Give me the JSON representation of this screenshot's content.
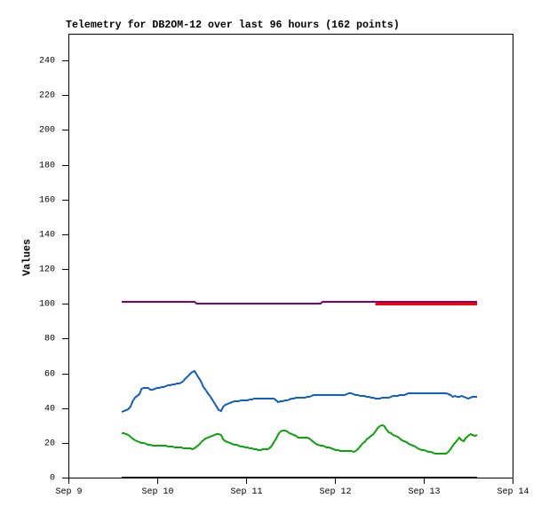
{
  "page": {
    "background": "#ffffff"
  },
  "chart_data": {
    "type": "line",
    "title": "Telemetry for DB2OM-12 over last 96 hours (162 points)",
    "xlabel": "",
    "ylabel": "Values",
    "points_count": 162,
    "x_axis": {
      "unit": "days",
      "range": [
        0,
        5
      ],
      "tick_days": [
        0,
        1,
        2,
        3,
        4,
        5
      ],
      "tick_labels": [
        "Sep 9",
        "Sep 10",
        "Sep 11",
        "Sep 12",
        "Sep 13",
        "Sep 14"
      ],
      "grid": false
    },
    "y_axis": {
      "range": [
        0,
        255.32
      ],
      "tick_min": 0,
      "tick_max": 240,
      "tick_step": 20,
      "tick_labels": [
        "0",
        "20",
        "40",
        "60",
        "80",
        "100",
        "120",
        "140",
        "160",
        "180",
        "200",
        "220",
        "240"
      ],
      "grid": false
    },
    "window_days": [
      0.6,
      4.6
    ],
    "sample_days": [
      0.6,
      0.6248,
      0.6497,
      0.6745,
      0.6994,
      0.7242,
      0.7491,
      0.7739,
      0.7988,
      0.8236,
      0.8484,
      0.8733,
      0.8981,
      0.923,
      0.9478,
      0.9727,
      0.9975,
      1.0224,
      1.0472,
      1.072,
      1.0969,
      1.1217,
      1.1466,
      1.1714,
      1.1963,
      1.2211,
      1.246,
      1.2708,
      1.2957,
      1.3205,
      1.3453,
      1.3702,
      1.395,
      1.4199,
      1.4447,
      1.4696,
      1.4944,
      1.5193,
      1.5441,
      1.5689,
      1.5938,
      1.6186,
      1.6435,
      1.6683,
      1.6932,
      1.718,
      1.7429,
      1.7677,
      1.7925,
      1.8174,
      1.8422,
      1.8671,
      1.8919,
      1.9168,
      1.9416,
      1.9665,
      1.9913,
      2.0161,
      2.041,
      2.0658,
      2.0907,
      2.1155,
      2.1404,
      2.1652,
      2.1901,
      2.2149,
      2.2398,
      2.2646,
      2.2894,
      2.3143,
      2.3391,
      2.364,
      2.3888,
      2.4137,
      2.4385,
      2.4634,
      2.4882,
      2.513,
      2.5379,
      2.5627,
      2.5876,
      2.6124,
      2.6373,
      2.6621,
      2.687,
      2.7118,
      2.7366,
      2.7615,
      2.7863,
      2.8112,
      2.836,
      2.8609,
      2.8857,
      2.9106,
      2.9354,
      2.9602,
      2.9851,
      3.0099,
      3.0348,
      3.0596,
      3.0845,
      3.1093,
      3.1342,
      3.159,
      3.1839,
      3.2087,
      3.2335,
      3.2584,
      3.2832,
      3.3081,
      3.3329,
      3.3578,
      3.3826,
      3.4075,
      3.4323,
      3.4571,
      3.482,
      3.5068,
      3.5317,
      3.5565,
      3.5814,
      3.6062,
      3.6311,
      3.6559,
      3.6807,
      3.7056,
      3.7304,
      3.7553,
      3.7801,
      3.805,
      3.8298,
      3.8547,
      3.8795,
      3.9043,
      3.9292,
      3.954,
      3.9789,
      4.0037,
      4.0286,
      4.0534,
      4.0783,
      4.1031,
      4.128,
      4.1528,
      4.1776,
      4.2025,
      4.2273,
      4.2522,
      4.277,
      4.3019,
      4.3267,
      4.3516,
      4.3764,
      4.4012,
      4.4261,
      4.4509,
      4.4758,
      4.5006,
      4.5255,
      4.5503,
      4.5752,
      4.6
    ],
    "legend": null,
    "series": [
      {
        "name": "purple",
        "color": "#7e007e",
        "stroke_width": 2,
        "values": [
          101,
          101,
          101,
          101,
          101,
          101,
          101,
          101,
          101,
          101,
          101,
          101,
          101,
          101,
          101,
          101,
          101,
          101,
          101,
          101,
          101,
          101,
          101,
          101,
          101,
          101,
          101,
          101,
          101,
          101,
          101,
          101,
          101,
          101,
          100,
          100,
          100,
          100,
          100,
          100,
          100,
          100,
          100,
          100,
          100,
          100,
          100,
          100,
          100,
          100,
          100,
          100,
          100,
          100,
          100,
          100,
          100,
          100,
          100,
          100,
          100,
          100,
          100,
          100,
          100,
          100,
          100,
          100,
          100,
          100,
          100,
          100,
          100,
          100,
          100,
          100,
          100,
          100,
          100,
          100,
          100,
          100,
          100,
          100,
          100,
          100,
          100,
          100,
          100,
          100,
          100,
          101,
          101,
          101,
          101,
          101,
          101,
          101,
          101,
          101,
          101,
          101,
          101,
          101,
          101,
          101,
          101,
          101,
          101,
          101,
          101,
          101,
          101,
          101,
          101,
          101,
          101,
          101,
          101,
          101,
          101,
          101,
          101,
          101,
          101,
          101,
          101,
          101,
          101,
          101,
          101,
          101,
          101,
          101,
          101,
          101,
          101,
          101,
          101,
          101,
          101,
          101,
          101,
          101,
          101,
          101,
          101,
          101,
          101,
          101,
          101,
          101,
          101,
          101,
          101,
          101,
          101,
          101,
          101,
          101,
          101,
          101
        ]
      },
      {
        "name": "red",
        "color": "#ff0000",
        "stroke_width": 3,
        "values": [
          null,
          null,
          null,
          null,
          null,
          null,
          null,
          null,
          null,
          null,
          null,
          null,
          null,
          null,
          null,
          null,
          null,
          null,
          null,
          null,
          null,
          null,
          null,
          null,
          null,
          null,
          null,
          null,
          null,
          null,
          null,
          null,
          null,
          null,
          null,
          null,
          null,
          null,
          null,
          null,
          null,
          null,
          null,
          null,
          null,
          null,
          null,
          null,
          null,
          null,
          null,
          null,
          null,
          null,
          null,
          null,
          null,
          null,
          null,
          null,
          null,
          null,
          null,
          null,
          null,
          null,
          null,
          null,
          null,
          null,
          null,
          null,
          null,
          null,
          null,
          null,
          null,
          null,
          null,
          null,
          null,
          null,
          null,
          null,
          null,
          null,
          null,
          null,
          null,
          null,
          null,
          null,
          null,
          null,
          null,
          null,
          null,
          null,
          null,
          null,
          null,
          null,
          null,
          null,
          null,
          null,
          null,
          null,
          null,
          null,
          null,
          null,
          null,
          null,
          null,
          100,
          100,
          100,
          100,
          100,
          100,
          100,
          100,
          100,
          100,
          100,
          100,
          100,
          100,
          100,
          100,
          100,
          100,
          100,
          100,
          100,
          100,
          100,
          100,
          100,
          100,
          100,
          100,
          100,
          100,
          100,
          100,
          100,
          100,
          100,
          100,
          100,
          100,
          100,
          100,
          100,
          100,
          100,
          100,
          100,
          100,
          100
        ]
      },
      {
        "name": "blue",
        "color": "#105fc6",
        "stroke_width": 2,
        "values": [
          38.0,
          38.5,
          39.0,
          39.5,
          40.75,
          44.0,
          45.75,
          47.0,
          47.75,
          51.25,
          51.75,
          51.75,
          51.75,
          50.75,
          50.5,
          51.25,
          51.75,
          51.75,
          52.0,
          52.25,
          52.5,
          53.0,
          53.25,
          53.5,
          53.75,
          54.0,
          54.25,
          54.75,
          55.75,
          57.0,
          58.25,
          59.5,
          61.0,
          61.25,
          59.0,
          57.25,
          55.25,
          52.25,
          50.75,
          48.75,
          46.75,
          44.75,
          43.0,
          41.0,
          39.0,
          38.25,
          40.75,
          41.75,
          42.5,
          43.0,
          43.5,
          43.75,
          44.0,
          44.0,
          44.25,
          44.25,
          44.5,
          44.5,
          44.75,
          44.75,
          45.25,
          45.5,
          45.5,
          45.5,
          45.5,
          45.5,
          45.5,
          45.5,
          45.5,
          45.5,
          44.25,
          43.5,
          43.75,
          44.0,
          44.25,
          44.5,
          45.0,
          45.25,
          45.5,
          45.75,
          45.75,
          46.0,
          46.0,
          46.0,
          46.25,
          46.25,
          46.75,
          47.25,
          47.25,
          47.25,
          47.25,
          47.25,
          47.25,
          47.25,
          47.25,
          47.25,
          47.25,
          47.25,
          47.25,
          47.25,
          47.5,
          47.5,
          47.75,
          48.5,
          48.5,
          47.75,
          47.25,
          47.25,
          47.0,
          47.0,
          46.75,
          46.5,
          46.25,
          46.0,
          46.0,
          45.5,
          45.5,
          45.5,
          45.75,
          46.0,
          46.0,
          46.0,
          46.25,
          46.75,
          47.0,
          47.0,
          47.25,
          47.25,
          47.5,
          48.0,
          48.5,
          48.5,
          48.5,
          48.5,
          48.5,
          48.5,
          48.5,
          48.5,
          48.5,
          48.5,
          48.5,
          48.5,
          48.5,
          48.5,
          48.5,
          48.5,
          48.5,
          48.5,
          47.75,
          47.25,
          46.5,
          47.0,
          46.25,
          46.25,
          46.75,
          46.5,
          46.0,
          45.5,
          46.0,
          46.25,
          46.25,
          46.25
        ]
      },
      {
        "name": "green",
        "color": "#0aa50a",
        "stroke_width": 2,
        "values": [
          25.75,
          25.5,
          25.0,
          24.5,
          23.5,
          22.5,
          21.5,
          20.75,
          20.5,
          20.0,
          19.75,
          19.5,
          19.0,
          18.75,
          18.5,
          18.5,
          18.5,
          18.5,
          18.5,
          18.25,
          18.25,
          18.0,
          17.75,
          17.75,
          17.5,
          17.25,
          17.25,
          17.25,
          17.0,
          17.0,
          16.75,
          16.75,
          16.5,
          16.75,
          17.75,
          19.0,
          20.5,
          21.5,
          22.25,
          23.0,
          23.5,
          24.25,
          24.75,
          25.25,
          25.25,
          24.5,
          21.75,
          21.0,
          20.5,
          20.0,
          19.5,
          19.0,
          18.75,
          18.5,
          18.0,
          17.75,
          17.5,
          17.25,
          17.0,
          16.75,
          16.5,
          16.25,
          15.75,
          16.0,
          16.25,
          16.25,
          16.5,
          16.75,
          18.25,
          20.25,
          22.5,
          25.0,
          26.75,
          27.0,
          27.0,
          26.75,
          25.75,
          25.0,
          24.5,
          23.75,
          23.0,
          23.0,
          23.0,
          23.0,
          23.0,
          22.25,
          21.25,
          20.25,
          19.25,
          19.0,
          18.5,
          18.25,
          17.75,
          17.5,
          17.25,
          16.75,
          16.25,
          16.0,
          15.75,
          15.5,
          15.5,
          15.5,
          15.5,
          15.25,
          15.25,
          15.0,
          15.25,
          16.25,
          17.75,
          19.25,
          20.5,
          21.75,
          23.0,
          24.25,
          25.0,
          26.75,
          28.5,
          29.75,
          30.0,
          29.5,
          27.5,
          26.25,
          25.5,
          24.75,
          24.25,
          23.25,
          22.25,
          21.5,
          21.0,
          20.25,
          19.5,
          19.0,
          18.25,
          17.75,
          17.0,
          16.5,
          16.0,
          15.75,
          15.5,
          15.0,
          14.75,
          14.25,
          14.0,
          13.75,
          13.75,
          14.0,
          13.75,
          14.0,
          15.0,
          16.5,
          18.25,
          20.0,
          21.5,
          22.75,
          21.25,
          21.0,
          22.75,
          24.25,
          25.0,
          24.5,
          24.25,
          24.75
        ]
      },
      {
        "name": "black",
        "color": "#000000",
        "stroke_width": 2,
        "values": [
          0.2,
          0.2,
          0.2,
          0.2,
          0.2,
          0.2,
          0.2,
          0.2,
          0.2,
          0.2,
          0.2,
          0.2,
          0.2,
          0.2,
          0.2,
          0.2,
          0.2,
          0.2,
          0.2,
          0.2,
          0.2,
          0.2,
          0.2,
          0.2,
          0.2,
          0.2,
          0.2,
          0.2,
          0.2,
          0.2,
          0.2,
          0.2,
          0.2,
          0.2,
          0.2,
          0.2,
          0.2,
          0.2,
          0.2,
          0.2,
          0.2,
          0.2,
          0.2,
          0.2,
          0.2,
          0.2,
          0.2,
          0.2,
          0.2,
          0.2,
          0.2,
          0.2,
          0.2,
          0.2,
          0.2,
          0.2,
          0.2,
          0.2,
          0.2,
          0.2,
          0.2,
          0.2,
          0.2,
          0.2,
          0.2,
          0.2,
          0.2,
          0.2,
          0.2,
          0.2,
          0.2,
          0.2,
          0.2,
          0.2,
          0.2,
          0.2,
          0.2,
          0.2,
          0.2,
          0.2,
          0.2,
          0.2,
          0.2,
          0.2,
          0.2,
          0.2,
          0.2,
          0.2,
          0.2,
          0.2,
          0.2,
          0.2,
          0.2,
          0.2,
          0.2,
          0.2,
          0.2,
          0.2,
          0.2,
          0.2,
          0.2,
          0.2,
          0.2,
          0.2,
          0.2,
          0.2,
          0.2,
          0.2,
          0.2,
          0.2,
          0.2,
          0.2,
          0.2,
          0.2,
          0.2,
          0.2,
          0.2,
          0.2,
          0.2,
          0.2,
          0.2,
          0.2,
          0.2,
          0.2,
          0.2,
          0.2,
          0.2,
          0.2,
          0.2,
          0.2,
          0.2,
          0.2,
          0.2,
          0.2,
          0.2,
          0.2,
          0.2,
          0.2,
          0.2,
          0.2,
          0.2,
          0.2,
          0.2,
          0.2,
          0.2,
          0.2,
          0.2,
          0.2,
          0.2,
          0.2,
          0.2,
          0.2,
          0.2,
          0.2,
          0.2,
          0.2,
          0.2,
          0.2,
          0.2,
          0.2,
          0.2,
          0.2
        ]
      }
    ]
  }
}
